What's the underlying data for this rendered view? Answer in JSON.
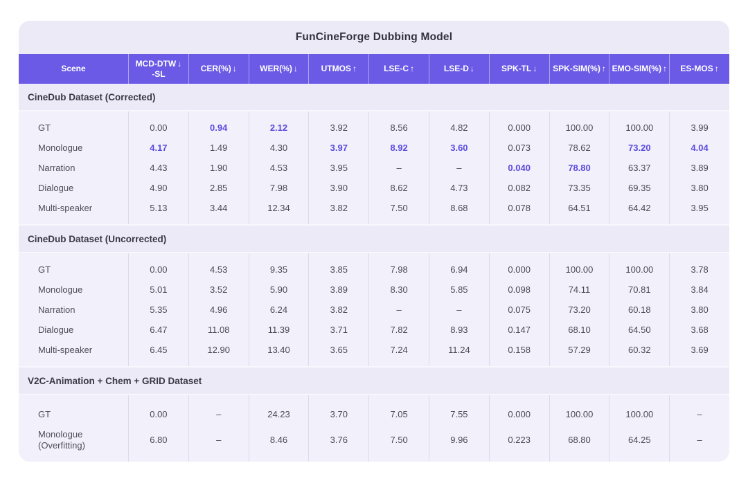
{
  "chart_data": {
    "type": "table",
    "title": "FunCineForge Dubbing Model",
    "arrows": {
      "down": "↓",
      "up": "↑"
    },
    "columns": [
      {
        "label": "Scene"
      },
      {
        "label": "MCD-DTW",
        "sub": "-SL",
        "dir": "down"
      },
      {
        "label": "CER(%)",
        "dir": "down"
      },
      {
        "label": "WER(%)",
        "dir": "down"
      },
      {
        "label": "UTMOS",
        "dir": "up"
      },
      {
        "label": "LSE-C",
        "dir": "up"
      },
      {
        "label": "LSE-D",
        "dir": "down"
      },
      {
        "label": "SPK-TL",
        "dir": "down"
      },
      {
        "label": "SPK-SIM(%)",
        "dir": "up"
      },
      {
        "label": "EMO-SIM(%)",
        "dir": "up"
      },
      {
        "label": "ES-MOS",
        "dir": "up"
      }
    ],
    "sections": [
      {
        "heading": "CineDub Dataset (Corrected)",
        "rows": [
          {
            "scene": "GT",
            "values": [
              "0.00",
              "0.94",
              "2.12",
              "3.92",
              "8.56",
              "4.82",
              "0.000",
              "100.00",
              "100.00",
              "3.99"
            ],
            "highlight": [
              1,
              2
            ]
          },
          {
            "scene": "Monologue",
            "values": [
              "4.17",
              "1.49",
              "4.30",
              "3.97",
              "8.92",
              "3.60",
              "0.073",
              "78.62",
              "73.20",
              "4.04"
            ],
            "highlight": [
              0,
              3,
              4,
              5,
              8,
              9
            ]
          },
          {
            "scene": "Narration",
            "values": [
              "4.43",
              "1.90",
              "4.53",
              "3.95",
              "–",
              "–",
              "0.040",
              "78.80",
              "63.37",
              "3.89"
            ],
            "highlight": [
              6,
              7
            ]
          },
          {
            "scene": "Dialogue",
            "values": [
              "4.90",
              "2.85",
              "7.98",
              "3.90",
              "8.62",
              "4.73",
              "0.082",
              "73.35",
              "69.35",
              "3.80"
            ],
            "highlight": []
          },
          {
            "scene": "Multi-speaker",
            "values": [
              "5.13",
              "3.44",
              "12.34",
              "3.82",
              "7.50",
              "8.68",
              "0.078",
              "64.51",
              "64.42",
              "3.95"
            ],
            "highlight": []
          }
        ]
      },
      {
        "heading": "CineDub Dataset (Uncorrected)",
        "rows": [
          {
            "scene": "GT",
            "values": [
              "0.00",
              "4.53",
              "9.35",
              "3.85",
              "7.98",
              "6.94",
              "0.000",
              "100.00",
              "100.00",
              "3.78"
            ],
            "highlight": []
          },
          {
            "scene": "Monologue",
            "values": [
              "5.01",
              "3.52",
              "5.90",
              "3.89",
              "8.30",
              "5.85",
              "0.098",
              "74.11",
              "70.81",
              "3.84"
            ],
            "highlight": []
          },
          {
            "scene": "Narration",
            "values": [
              "5.35",
              "4.96",
              "6.24",
              "3.82",
              "–",
              "–",
              "0.075",
              "73.20",
              "60.18",
              "3.80"
            ],
            "highlight": []
          },
          {
            "scene": "Dialogue",
            "values": [
              "6.47",
              "11.08",
              "11.39",
              "3.71",
              "7.82",
              "8.93",
              "0.147",
              "68.10",
              "64.50",
              "3.68"
            ],
            "highlight": []
          },
          {
            "scene": "Multi-speaker",
            "values": [
              "6.45",
              "12.90",
              "13.40",
              "3.65",
              "7.24",
              "11.24",
              "0.158",
              "57.29",
              "60.32",
              "3.69"
            ],
            "highlight": []
          }
        ]
      },
      {
        "heading": "V2C-Animation + Chem + GRID Dataset",
        "rows": [
          {
            "scene": "GT",
            "values": [
              "0.00",
              "–",
              "24.23",
              "3.70",
              "7.05",
              "7.55",
              "0.000",
              "100.00",
              "100.00",
              "–"
            ],
            "highlight": []
          },
          {
            "scene": "Monologue",
            "scene_sub": "(Overfitting)",
            "values": [
              "6.80",
              "–",
              "8.46",
              "3.76",
              "7.50",
              "9.96",
              "0.223",
              "68.80",
              "64.25",
              "–"
            ],
            "highlight": []
          }
        ]
      }
    ],
    "colors": {
      "header_bg": "#6A5AE6",
      "highlight": "#5B4BDF",
      "card_bg": "#ECEAF7",
      "body_bg": "#F1F0FB",
      "header_text": "#FFFFFF",
      "text": "#4B4953",
      "heading_text": "#3A3744"
    }
  }
}
